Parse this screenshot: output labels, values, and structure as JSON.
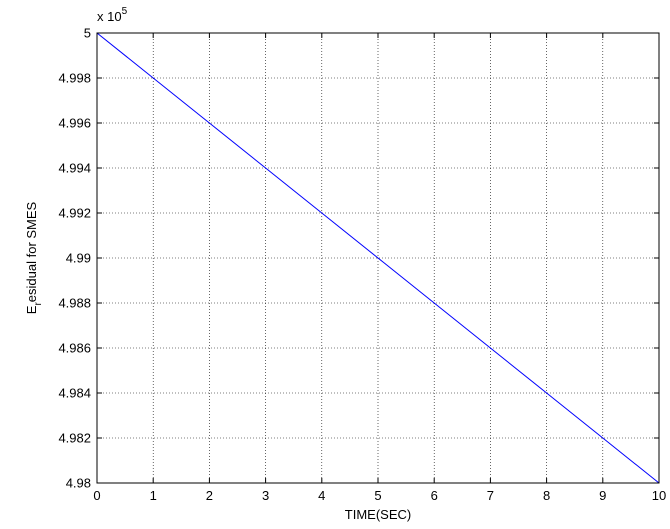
{
  "chart_data": {
    "type": "line",
    "title": "",
    "xlabel": "TIME(SEC)",
    "ylabel_main": "E",
    "ylabel_sub": "r",
    "ylabel_rest": "esidual for SMES",
    "exponent_base": "x 10",
    "exponent_power": "5",
    "xlim": [
      0,
      10
    ],
    "ylim": [
      4.98,
      5.0
    ],
    "xticks": [
      0,
      1,
      2,
      3,
      4,
      5,
      6,
      7,
      8,
      9,
      10
    ],
    "xtick_labels": [
      "0",
      "1",
      "2",
      "3",
      "4",
      "5",
      "6",
      "7",
      "8",
      "9",
      "10"
    ],
    "yticks": [
      4.98,
      4.982,
      4.984,
      4.986,
      4.988,
      4.99,
      4.992,
      4.994,
      4.996,
      4.998,
      5.0
    ],
    "ytick_labels": [
      "4.98",
      "4.982",
      "4.984",
      "4.986",
      "4.988",
      "4.99",
      "4.992",
      "4.994",
      "4.996",
      "4.998",
      "5"
    ],
    "grid": true,
    "series": [
      {
        "color": "#0000ff",
        "x": [
          0,
          1,
          2,
          3,
          4,
          5,
          6,
          7,
          8,
          9,
          10
        ],
        "y": [
          5.0,
          4.998,
          4.996,
          4.994,
          4.992,
          4.99,
          4.988,
          4.986,
          4.984,
          4.982,
          4.98
        ]
      }
    ]
  }
}
